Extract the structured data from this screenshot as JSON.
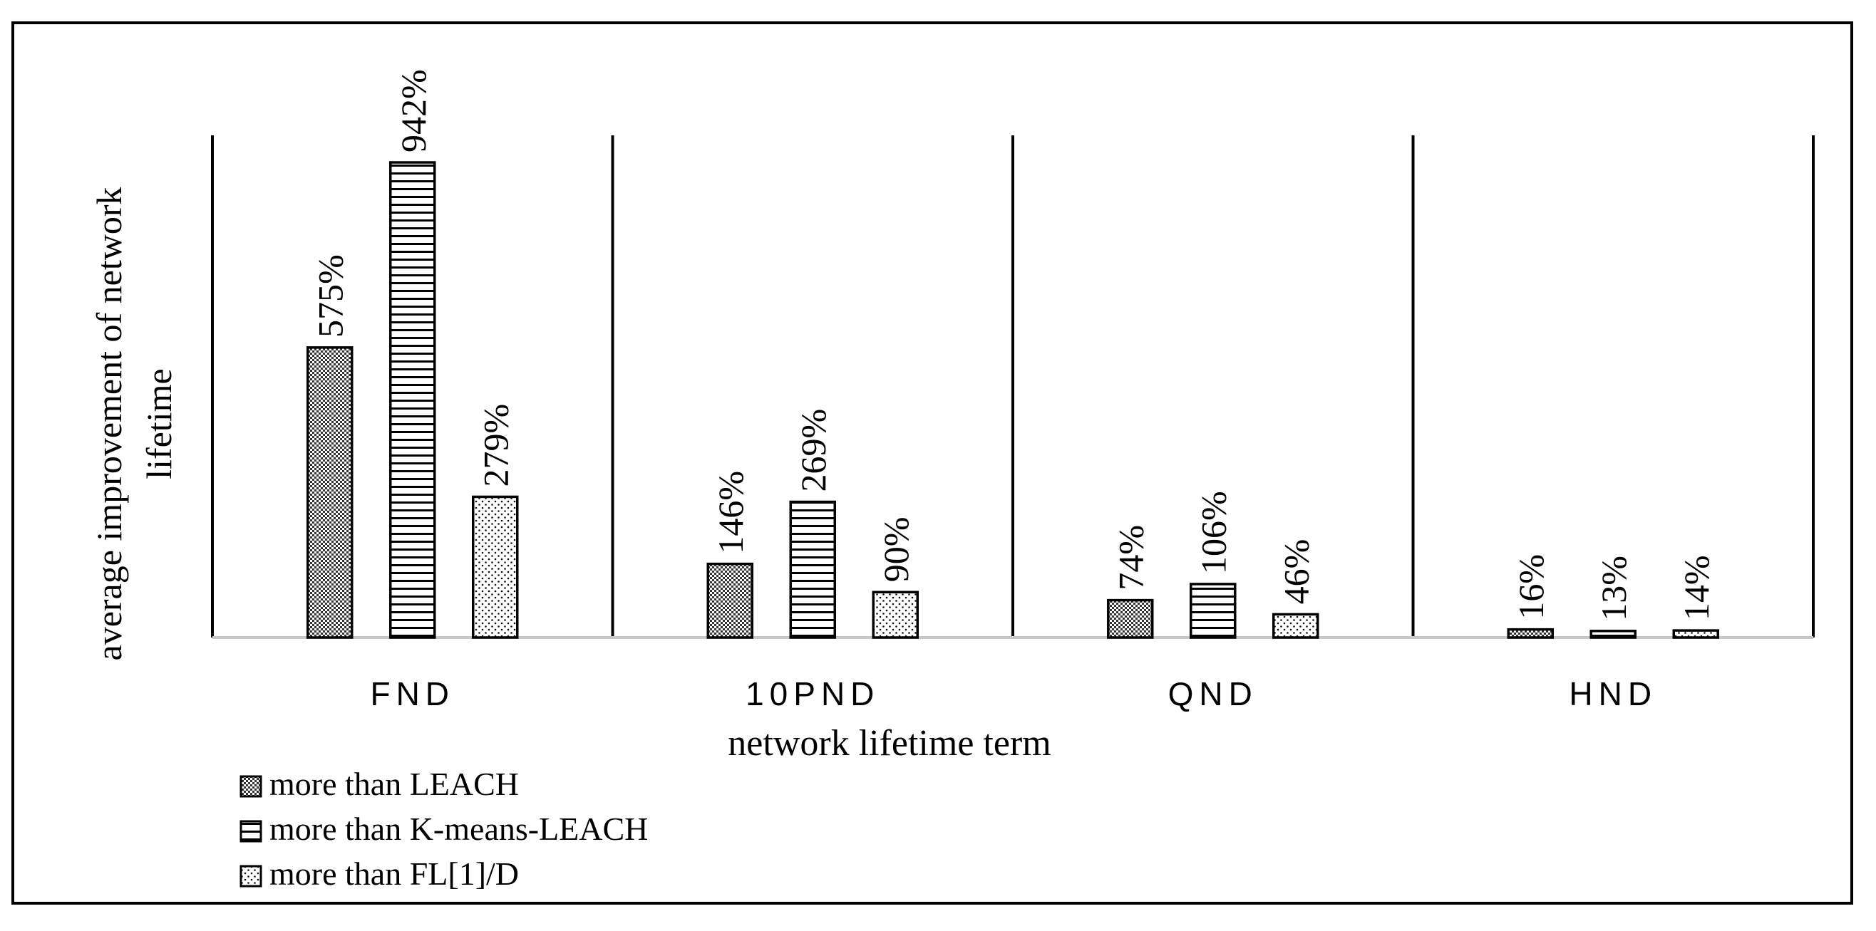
{
  "chart_data": {
    "type": "bar",
    "title": "",
    "xlabel": "network lifetime term",
    "ylabel": "average improvement of network lifetime",
    "ylabel_lines": [
      "average improvement of network",
      "lifetime"
    ],
    "ylim": [
      0,
      1000
    ],
    "grid": false,
    "legend_position": "bottom-left",
    "categories": [
      "FND",
      "10PND",
      "QND",
      "HND"
    ],
    "series": [
      {
        "name": "more than LEACH",
        "pattern": "crosshatch",
        "values": [
          575,
          146,
          74,
          16
        ],
        "labels": [
          "575%",
          "146%",
          "74%",
          "16%"
        ]
      },
      {
        "name": "more than K-means-LEACH",
        "pattern": "horizontal-lines",
        "values": [
          942,
          269,
          106,
          13
        ],
        "labels": [
          "942%",
          "269%",
          "106%",
          "13%"
        ]
      },
      {
        "name": "more than FL[1]/D",
        "pattern": "dots",
        "values": [
          279,
          90,
          46,
          14
        ],
        "labels": [
          "279%",
          "90%",
          "46%",
          "14%"
        ]
      }
    ],
    "colors": {
      "stroke": "#000000",
      "fill": "#ffffff",
      "axis": "#c8c8c8"
    }
  }
}
